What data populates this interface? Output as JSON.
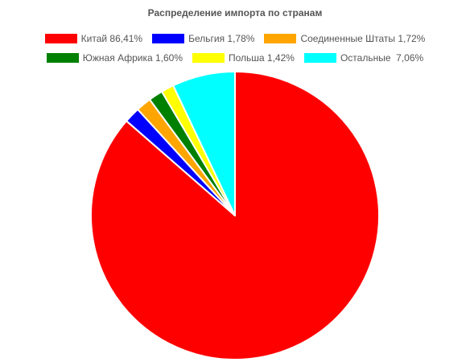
{
  "chart_data": {
    "type": "pie",
    "title": "Распределение импорта по странам",
    "legend_position": "top",
    "slices": [
      {
        "label": "Китай 86,41%",
        "value": 86.41,
        "color": "#ff0000"
      },
      {
        "label": "Бельгия 1,78%",
        "value": 1.78,
        "color": "#0000ff"
      },
      {
        "label": "Соединенные Штаты 1,72%",
        "value": 1.72,
        "color": "#ffa500"
      },
      {
        "label": "Южная Африка 1,60%",
        "value": 1.6,
        "color": "#008000"
      },
      {
        "label": "Польша 1,42%",
        "value": 1.42,
        "color": "#ffff00"
      },
      {
        "label": "Остальные  7,06%",
        "value": 7.06,
        "color": "#00ffff"
      }
    ]
  }
}
